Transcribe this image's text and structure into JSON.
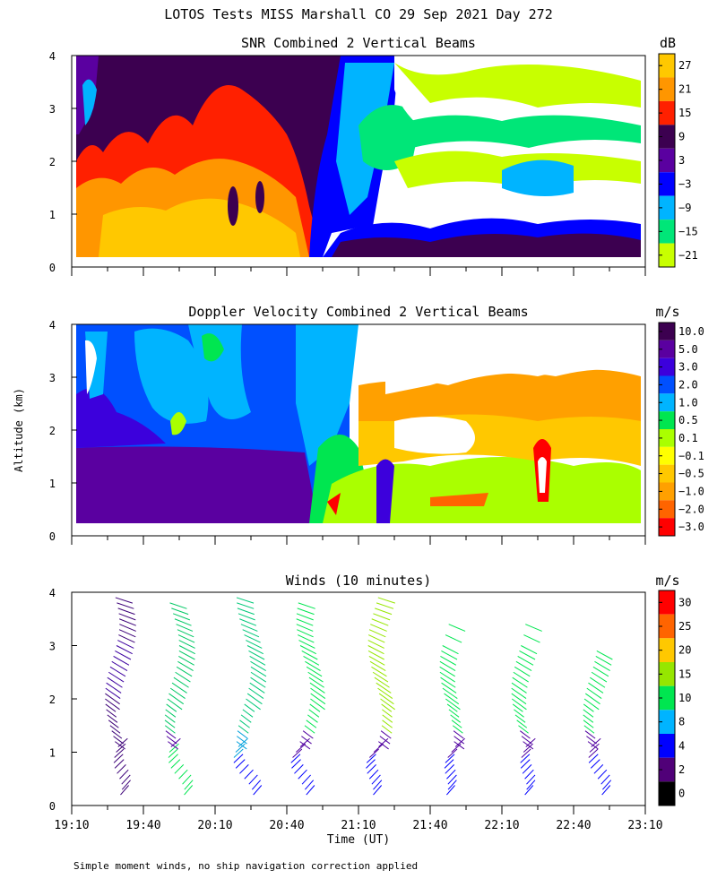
{
  "figure": {
    "title": "LOTOS Tests MISS Marshall CO  29 Sep 2021 Day 272",
    "ylabel": "Altitude (km)",
    "xlabel": "Time (UT)",
    "footnote": "Simple moment winds, no ship navigation correction applied"
  },
  "chart_data": [
    {
      "type": "heatmap",
      "title": "SNR Combined 2 Vertical Beams",
      "ylim": [
        0,
        4
      ],
      "yticks": [
        "0",
        "1",
        "2",
        "3",
        "4"
      ],
      "colorbar": {
        "unit": "dB",
        "labels": [
          "27",
          "21",
          "15",
          "9",
          "3",
          "−3",
          "−9",
          "−15",
          "−21"
        ],
        "colors": [
          "#ffc800",
          "#ff9600",
          "#ff2000",
          "#3c0050",
          "#5a00a0",
          "#0000ff",
          "#00b4ff",
          "#00e678",
          "#c8ff00"
        ]
      }
    },
    {
      "type": "heatmap",
      "title": "Doppler Velocity Combined 2 Vertical Beams",
      "ylim": [
        0,
        4
      ],
      "yticks": [
        "0",
        "1",
        "2",
        "3",
        "4"
      ],
      "colorbar": {
        "unit": "m/s",
        "labels": [
          "10.0",
          "5.0",
          "3.0",
          "2.0",
          "1.0",
          "0.5",
          "0.1",
          "−0.1",
          "−0.5",
          "−1.0",
          "−2.0",
          "−3.0"
        ],
        "colors": [
          "#3c0050",
          "#5a00a0",
          "#3c00dc",
          "#0050ff",
          "#00b4ff",
          "#00e650",
          "#aaff00",
          "#ffff00",
          "#ffc800",
          "#ffa000",
          "#ff6400",
          "#ff0000"
        ]
      }
    },
    {
      "type": "scatter",
      "title": "Winds (10 minutes)",
      "ylim": [
        0,
        4
      ],
      "yticks": [
        "0",
        "1",
        "2",
        "3",
        "4"
      ],
      "xticks": [
        "19:10",
        "19:40",
        "20:10",
        "20:40",
        "21:10",
        "21:40",
        "22:10",
        "22:40",
        "23:10"
      ],
      "colorbar": {
        "unit": "m/s",
        "labels": [
          "30",
          "25",
          "20",
          "15",
          "10",
          "8",
          "4",
          "2",
          "0"
        ],
        "colors": [
          "#ff0000",
          "#ff6400",
          "#ffc800",
          "#96e600",
          "#00e650",
          "#00b4ff",
          "#0000ff",
          "#500078",
          "#000000"
        ]
      },
      "profile_times": [
        "19:30",
        "19:55",
        "20:25",
        "20:50",
        "21:20",
        "21:50",
        "22:20",
        "22:50"
      ]
    }
  ]
}
